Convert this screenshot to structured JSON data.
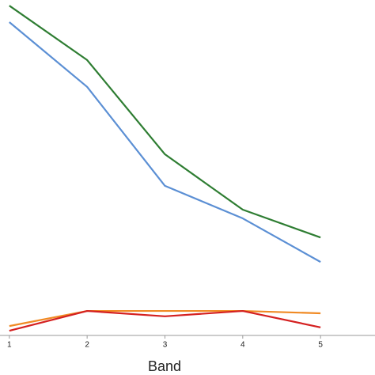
{
  "chart_data": {
    "type": "line",
    "x_label": "Band",
    "x": [
      1,
      2,
      3,
      4,
      5
    ],
    "series": [
      {
        "color": "#2e7d32",
        "values": [
          98.3,
          82.1,
          54.0,
          37.5,
          29.2
        ]
      },
      {
        "color": "#5b8fd4",
        "values": [
          93.4,
          74.1,
          44.6,
          34.9,
          21.9
        ]
      },
      {
        "color": "#f08a24",
        "values": [
          2.8,
          7.3,
          7.3,
          7.3,
          6.6
        ]
      },
      {
        "color": "#d42020",
        "values": [
          1.4,
          7.3,
          5.7,
          7.3,
          2.4
        ]
      }
    ],
    "xlim": [
      0.88,
      5.7
    ],
    "xticks": [
      1,
      2,
      3,
      4,
      5
    ],
    "ylim": [
      0,
      100
    ],
    "grid": false
  }
}
